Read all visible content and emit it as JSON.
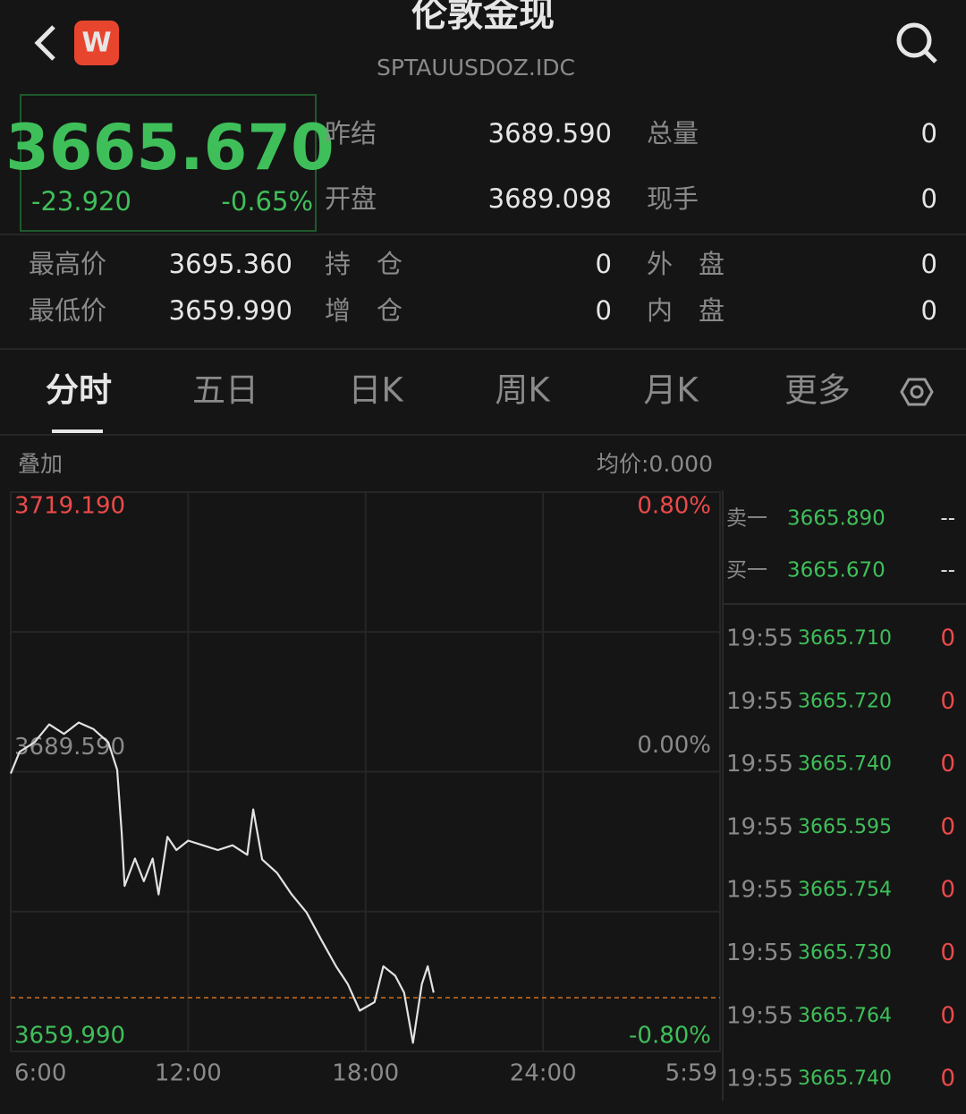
{
  "header": {
    "logo": "W",
    "title": "伦敦金现",
    "code": "SPTAUUSDOZ.IDC"
  },
  "quote": {
    "price": "3665.670",
    "change": "-23.920",
    "change_pct": "-0.65%"
  },
  "stats": [
    {
      "label": "昨结",
      "value": "3689.590"
    },
    {
      "label": "总量",
      "value": "0"
    },
    {
      "label": "开盘",
      "value": "3689.098"
    },
    {
      "label": "现手",
      "value": "0"
    },
    {
      "label": "最高价",
      "value": "3695.360"
    },
    {
      "label": "持　仓",
      "value": "0"
    },
    {
      "label": "外　盘",
      "value": "0"
    },
    {
      "label": "最低价",
      "value": "3659.990"
    },
    {
      "label": "增　仓",
      "value": "0"
    },
    {
      "label": "内　盘",
      "value": "0"
    }
  ],
  "tabs": [
    "分时",
    "五日",
    "日K",
    "周K",
    "月K",
    "更多"
  ],
  "overlay": "叠加",
  "avg_price": "均价:0.000",
  "order_book": [
    {
      "label": "卖一",
      "price": "3665.890",
      "volume": "--"
    },
    {
      "label": "买一",
      "price": "3665.670",
      "volume": "--"
    }
  ],
  "trades": [
    {
      "time": "19:55",
      "price": "3665.710",
      "volume": "0"
    },
    {
      "time": "19:55",
      "price": "3665.720",
      "volume": "0"
    },
    {
      "time": "19:55",
      "price": "3665.740",
      "volume": "0"
    },
    {
      "time": "19:55",
      "price": "3665.595",
      "volume": "0"
    },
    {
      "time": "19:55",
      "price": "3665.754",
      "volume": "0"
    },
    {
      "time": "19:55",
      "price": "3665.730",
      "volume": "0"
    },
    {
      "time": "19:55",
      "price": "3665.764",
      "volume": "0"
    },
    {
      "time": "19:55",
      "price": "3665.740",
      "volume": "0"
    }
  ],
  "chart_data": {
    "type": "line",
    "color": "#e2e2e2",
    "x": [
      6.0,
      6.3,
      6.8,
      7.3,
      7.8,
      8.3,
      8.8,
      9.3,
      9.6,
      9.75,
      9.85,
      10.2,
      10.5,
      10.8,
      11.0,
      11.3,
      11.6,
      12.0,
      12.5,
      13.0,
      13.5,
      14.0,
      14.2,
      14.5,
      15.0,
      15.5,
      16.0,
      16.5,
      17.0,
      17.4,
      17.8,
      18.3,
      18.6,
      19.0,
      19.3,
      19.6,
      19.9,
      20.1,
      20.3
    ],
    "values": [
      3689.4,
      3691.7,
      3692.7,
      3694.6,
      3693.6,
      3694.8,
      3694.1,
      3692.7,
      3689.8,
      3683.2,
      3677.5,
      3680.4,
      3678.0,
      3680.4,
      3676.6,
      3682.7,
      3681.3,
      3682.3,
      3681.8,
      3681.3,
      3681.8,
      3680.8,
      3685.6,
      3680.3,
      3678.9,
      3676.6,
      3674.7,
      3671.8,
      3669.0,
      3667.1,
      3664.3,
      3665.2,
      3669.0,
      3668.0,
      3666.2,
      3660.9,
      3667.1,
      3669.0,
      3666.2
    ],
    "xlim": [
      6,
      29.983
    ],
    "xticks": [
      {
        "value": 6,
        "label": "6:00"
      },
      {
        "value": 12,
        "label": "12:00"
      },
      {
        "value": 18,
        "label": "18:00"
      },
      {
        "value": 24,
        "label": "24:00"
      },
      {
        "value": 29.983,
        "label": "5:59"
      }
    ],
    "ylim": [
      3659.99,
      3719.19
    ],
    "yticks": [
      {
        "value": 3659.99,
        "label": "3659.990"
      },
      {
        "value": 3689.59,
        "label": "3689.590"
      },
      {
        "value": 3719.19,
        "label": "3719.190"
      }
    ],
    "y2lim": [
      -0.8,
      0.8
    ],
    "y2ticks": [
      {
        "value": -0.8,
        "label": "-0.80%"
      },
      {
        "value": 0,
        "label": "0.00%"
      },
      {
        "value": 0.8,
        "label": "0.80%"
      }
    ],
    "reference_line": 3665.67
  }
}
